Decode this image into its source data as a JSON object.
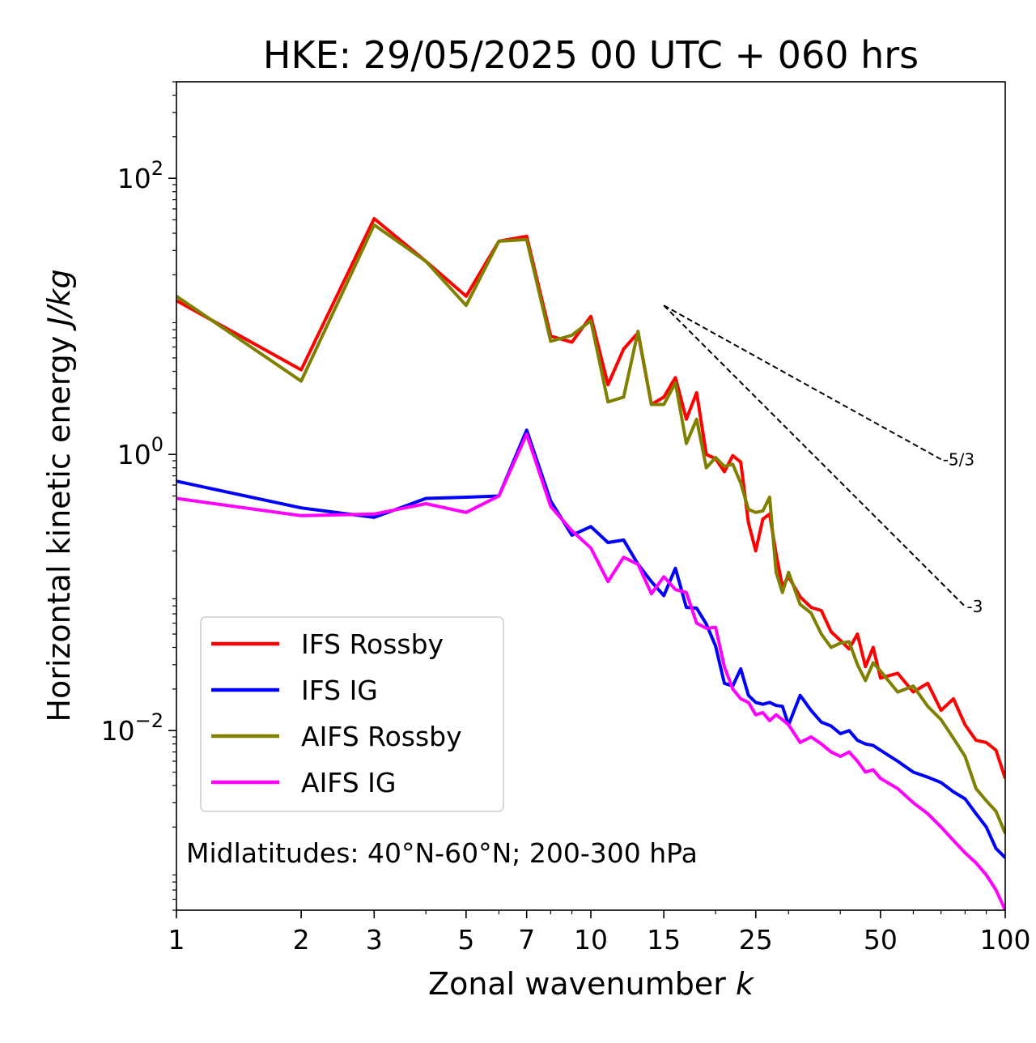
{
  "chart_data": {
    "type": "line",
    "title": "HKE: 29/05/2025 00 UTC + 060 hrs",
    "xlabel": "Zonal wavenumber",
    "xlabel_var": "k",
    "ylabel": "Horizontal kinetic energy",
    "ylabel_unit": "J/kg",
    "xscale": "log",
    "yscale": "log",
    "xlim": [
      1,
      100
    ],
    "ylim": [
      0.0005,
      500
    ],
    "x_ticks": [
      1,
      2,
      3,
      5,
      7,
      10,
      15,
      25,
      50,
      100
    ],
    "x_tick_labels": [
      "1",
      "2",
      "3",
      "5",
      "7",
      "10",
      "15",
      "25",
      "50",
      "100"
    ],
    "y_ticks": [
      {
        "value": 100,
        "base": "10",
        "exp": "2"
      },
      {
        "value": 1,
        "base": "10",
        "exp": "0"
      },
      {
        "value": 0.01,
        "base": "10",
        "exp": "−2"
      }
    ],
    "legend_position": "lower-left",
    "annotation": "Midlatitudes: 40°N-60°N; 200-300 hPa",
    "reference_slopes": [
      {
        "label": "-5/3",
        "slope": -1.6667,
        "x_start": 15,
        "x_end": 70,
        "y_start": 12
      },
      {
        "label": "-3",
        "slope": -3,
        "x_start": 15,
        "x_end": 80,
        "y_start": 12
      }
    ],
    "series": [
      {
        "name": "IFS Rossby",
        "color": "#ff0000",
        "x": [
          1,
          2,
          3,
          4,
          5,
          6,
          7,
          8,
          9,
          10,
          11,
          12,
          13,
          14,
          15,
          16,
          17,
          18,
          19,
          20,
          21,
          22,
          23,
          24,
          25,
          26,
          27,
          28,
          29,
          30,
          32,
          34,
          36,
          38,
          40,
          42,
          44,
          46,
          48,
          50,
          55,
          60,
          65,
          70,
          75,
          80,
          85,
          90,
          95,
          100
        ],
        "y": [
          13,
          4.1,
          51,
          25,
          14,
          35,
          38,
          7.2,
          6.5,
          10,
          3.2,
          5.8,
          7.6,
          2.3,
          2.6,
          3.6,
          1.8,
          2.8,
          1.0,
          0.93,
          0.75,
          0.98,
          0.88,
          0.32,
          0.2,
          0.34,
          0.37,
          0.19,
          0.11,
          0.13,
          0.093,
          0.078,
          0.074,
          0.052,
          0.045,
          0.039,
          0.05,
          0.029,
          0.04,
          0.024,
          0.026,
          0.019,
          0.022,
          0.014,
          0.017,
          0.011,
          0.0085,
          0.0082,
          0.0072,
          0.0045
        ]
      },
      {
        "name": "IFS IG",
        "color": "#0000ff",
        "x": [
          1,
          2,
          3,
          4,
          5,
          6,
          7,
          8,
          9,
          10,
          11,
          12,
          13,
          14,
          15,
          16,
          17,
          18,
          19,
          20,
          21,
          22,
          23,
          24,
          25,
          26,
          27,
          28,
          29,
          30,
          32,
          34,
          36,
          38,
          40,
          42,
          44,
          46,
          48,
          50,
          55,
          60,
          65,
          70,
          75,
          80,
          85,
          90,
          95,
          100
        ],
        "y": [
          0.64,
          0.41,
          0.35,
          0.48,
          0.49,
          0.5,
          1.5,
          0.46,
          0.26,
          0.3,
          0.23,
          0.24,
          0.16,
          0.12,
          0.095,
          0.15,
          0.078,
          0.077,
          0.059,
          0.041,
          0.022,
          0.021,
          0.028,
          0.018,
          0.016,
          0.0155,
          0.016,
          0.0152,
          0.015,
          0.011,
          0.018,
          0.014,
          0.0115,
          0.0108,
          0.0095,
          0.01,
          0.0085,
          0.008,
          0.0078,
          0.0072,
          0.006,
          0.005,
          0.0046,
          0.0042,
          0.0036,
          0.0032,
          0.0025,
          0.002,
          0.0014,
          0.0012
        ]
      },
      {
        "name": "AIFS Rossby",
        "color": "#808000",
        "x": [
          1,
          2,
          3,
          4,
          5,
          6,
          7,
          8,
          9,
          10,
          11,
          12,
          13,
          14,
          15,
          16,
          17,
          18,
          19,
          20,
          21,
          22,
          23,
          24,
          25,
          26,
          27,
          28,
          29,
          30,
          32,
          34,
          36,
          38,
          40,
          42,
          44,
          46,
          48,
          50,
          55,
          60,
          65,
          70,
          75,
          80,
          85,
          90,
          95,
          100
        ],
        "y": [
          14,
          3.4,
          46,
          25,
          12,
          35,
          36,
          6.6,
          7.3,
          9.3,
          2.4,
          2.6,
          7.8,
          2.3,
          2.3,
          3.3,
          1.2,
          1.8,
          0.8,
          0.95,
          0.82,
          0.85,
          0.62,
          0.4,
          0.38,
          0.39,
          0.49,
          0.14,
          0.1,
          0.14,
          0.082,
          0.071,
          0.05,
          0.04,
          0.043,
          0.044,
          0.03,
          0.023,
          0.031,
          0.027,
          0.019,
          0.021,
          0.015,
          0.012,
          0.0088,
          0.0065,
          0.0038,
          0.0031,
          0.0026,
          0.0018
        ]
      },
      {
        "name": "AIFS IG",
        "color": "#ff00ff",
        "x": [
          1,
          2,
          3,
          4,
          5,
          6,
          7,
          8,
          9,
          10,
          11,
          12,
          13,
          14,
          15,
          16,
          17,
          18,
          19,
          20,
          21,
          22,
          23,
          24,
          25,
          26,
          27,
          28,
          29,
          30,
          32,
          34,
          36,
          38,
          40,
          42,
          44,
          46,
          48,
          50,
          55,
          60,
          65,
          70,
          75,
          80,
          85,
          90,
          95,
          100
        ],
        "y": [
          0.48,
          0.36,
          0.37,
          0.44,
          0.38,
          0.5,
          1.4,
          0.42,
          0.28,
          0.21,
          0.12,
          0.18,
          0.16,
          0.098,
          0.13,
          0.105,
          0.1,
          0.06,
          0.055,
          0.056,
          0.029,
          0.02,
          0.017,
          0.016,
          0.013,
          0.0135,
          0.0118,
          0.013,
          0.012,
          0.011,
          0.0082,
          0.009,
          0.008,
          0.007,
          0.0065,
          0.007,
          0.006,
          0.005,
          0.0052,
          0.0045,
          0.0038,
          0.003,
          0.0025,
          0.002,
          0.0016,
          0.0013,
          0.0011,
          0.0009,
          0.0007,
          0.0005
        ]
      }
    ]
  }
}
